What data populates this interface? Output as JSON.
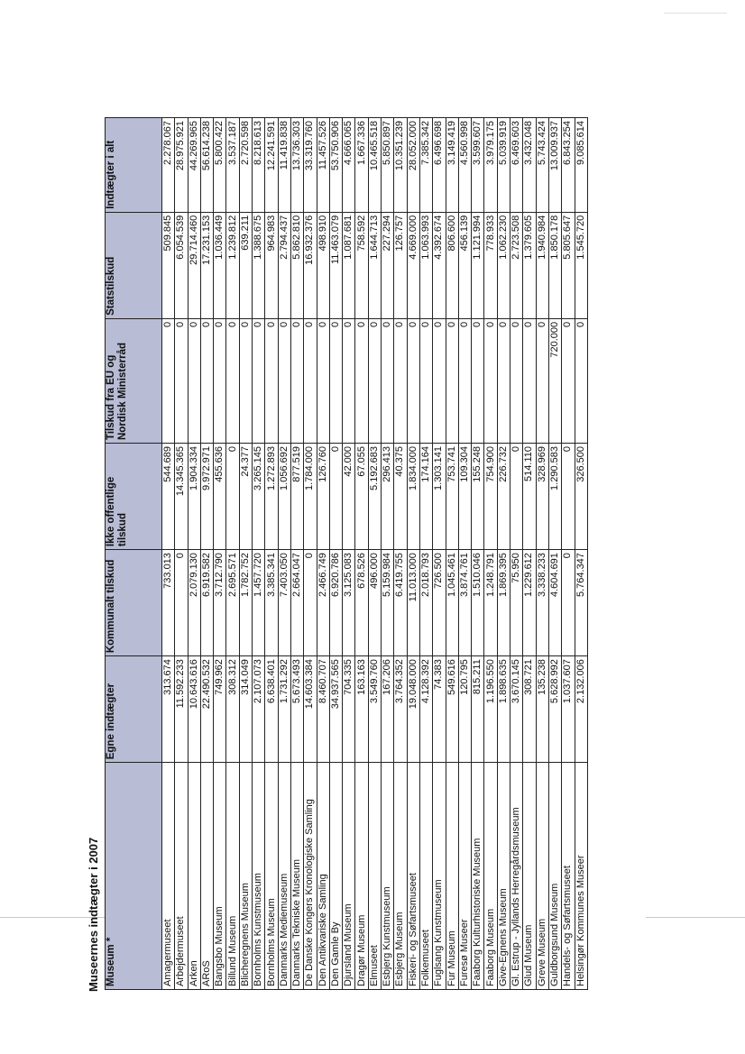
{
  "title": "Museernes indtægter i 2007",
  "table": {
    "headers": [
      "Museum *",
      "Egne indtægter",
      "Kommunalt tilskud",
      "Ikke offentlige tilskud",
      "Tilskud fra EU og Nordisk Ministerråd",
      "Statstilskud",
      "Indtægter i alt"
    ],
    "rows": [
      [
        "Amagermuseet",
        "313.674",
        "733.013",
        "544.689",
        "0",
        "509.845",
        "2.278.067"
      ],
      [
        "Arbejdermuseet",
        "11.592.233",
        "0",
        "14.345.365",
        "0",
        "6.054.539",
        "28.975.921"
      ],
      [
        "Arken",
        "10.643.616",
        "2.079.130",
        "1.904.334",
        "0",
        "29.714.460",
        "44.269.965"
      ],
      [
        "ARoS",
        "22.490.532",
        "6.919.582",
        "9.972.971",
        "0",
        "17.231.153",
        "56.614.238"
      ],
      [
        "Bangsbo Museum",
        "749.962",
        "3.712.790",
        "455.636",
        "0",
        "1.036.449",
        "5.800.422"
      ],
      [
        "Billund Museum",
        "308.312",
        "2.695.571",
        "0",
        "0",
        "1.239.812",
        "3.537.187"
      ],
      [
        "Blicheregnens Museum",
        "314.049",
        "1.782.752",
        "24.377",
        "0",
        "639.211",
        "2.720.598"
      ],
      [
        "Bornholms Kunstmuseum",
        "2.107.073",
        "1.457.720",
        "3.265.145",
        "0",
        "1.388.675",
        "8.218.613"
      ],
      [
        "Bornholms Museum",
        "6.638.401",
        "3.385.341",
        "1.272.893",
        "0",
        "964.983",
        "12.241.591"
      ],
      [
        "Danmarks Mediemuseum",
        "1.731.292",
        "7.403.050",
        "1.056.692",
        "0",
        "2.794.437",
        "11.419.838"
      ],
      [
        "Danmarks Tekniske Museum",
        "5.673.493",
        "2.664.047",
        "877.519",
        "0",
        "5.862.810",
        "13.736.303"
      ],
      [
        "De Danske Kongers Kronologiske Samling",
        "14.603.384",
        "0",
        "1.784.000",
        "0",
        "16.932.376",
        "33.319.760"
      ],
      [
        "Den Antikvariske Samling",
        "8.460.707",
        "2.466.749",
        "126.760",
        "0",
        "498.910",
        "11.457.526"
      ],
      [
        "Den Gamle By",
        "34.937.565",
        "6.920.786",
        "0",
        "0",
        "11.463.079",
        "53.750.906"
      ],
      [
        "Djursland Museum",
        "704.335",
        "3.125.083",
        "42.000",
        "0",
        "1.087.681",
        "4.666.065"
      ],
      [
        "Dragør Museum",
        "163.163",
        "678.526",
        "67.055",
        "0",
        "758.592",
        "1.667.336"
      ],
      [
        "Elmuseet",
        "3.549.760",
        "496.000",
        "5.192.683",
        "0",
        "1.644.713",
        "10.465.518"
      ],
      [
        "Esbjerg Kunstmuseum",
        "167.206",
        "5.159.984",
        "296.413",
        "0",
        "227.294",
        "5.850.897"
      ],
      [
        "Esbjerg Museum",
        "3.764.352",
        "6.419.755",
        "40.375",
        "0",
        "126.757",
        "10.351.239"
      ],
      [
        "Fiskeri- og Søfartsmuseet",
        "19.048.000",
        "11.013.000",
        "1.834.000",
        "0",
        "4.669.000",
        "28.052.000"
      ],
      [
        "Folkemuseet",
        "4.128.392",
        "2.018.793",
        "174.164",
        "0",
        "1.063.993",
        "7.385.342"
      ],
      [
        "Fuglsang Kunstmuseum",
        "74.383",
        "726.500",
        "1.303.141",
        "0",
        "4.392.674",
        "6.496.698"
      ],
      [
        "Fur Museum",
        "549.616",
        "1.045.461",
        "753.741",
        "0",
        "806.600",
        "3.149.419"
      ],
      [
        "Furesø Museer",
        "120.795",
        "3.874.761",
        "109.304",
        "0",
        "456.139",
        "4.560.998"
      ],
      [
        "Faaborg Kulturhistoriske Museum",
        "815.211",
        "1.510.046",
        "155.248",
        "0",
        "1.121.994",
        "3.599.607"
      ],
      [
        "Faaborg Museum",
        "1.196.550",
        "1.248.791",
        "754.900",
        "0",
        "778.933",
        "3.979.175"
      ],
      [
        "Give-Egnens Museum",
        "1.898.635",
        "1.869.395",
        "226.732",
        "0",
        "1.062.230",
        "5.039.919"
      ],
      [
        "Gl. Estrup - Jyllands Herregårdsmuseum",
        "3.670.145",
        "75.950",
        "0",
        "0",
        "2.723.508",
        "6.469.603"
      ],
      [
        "Glud Museum",
        "308.721",
        "1.229.612",
        "514.110",
        "0",
        "1.379.605",
        "3.432.048"
      ],
      [
        "Greve Museum",
        "135.238",
        "3.338.233",
        "328.969",
        "0",
        "1.940.984",
        "5.743.424"
      ],
      [
        "Guldborgsund Museum",
        "5.628.992",
        "4.604.691",
        "1.290.583",
        "720.000",
        "1.850.178",
        "13.009.937"
      ],
      [
        "Handels- og Søfartsmuseet",
        "1.037.607",
        "0",
        "0",
        "0",
        "5.805.647",
        "6.843.254"
      ],
      [
        "Helsingør Kommunes Museer",
        "2.132.006",
        "5.764.347",
        "326.500",
        "0",
        "1.545.720",
        "9.085.614"
      ]
    ]
  }
}
